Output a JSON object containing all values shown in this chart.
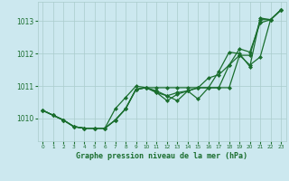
{
  "xlabel": "Graphe pression niveau de la mer (hPa)",
  "xlim": [
    -0.5,
    23.5
  ],
  "ylim": [
    1009.3,
    1013.6
  ],
  "yticks": [
    1010,
    1011,
    1012,
    1013
  ],
  "xticks": [
    0,
    1,
    2,
    3,
    4,
    5,
    6,
    7,
    8,
    9,
    10,
    11,
    12,
    13,
    14,
    15,
    16,
    17,
    18,
    19,
    20,
    21,
    22,
    23
  ],
  "background_color": "#cce8ef",
  "grid_color": "#aacccc",
  "line_color": "#1a6e2e",
  "marker": "D",
  "markersize": 2.0,
  "linewidth": 0.9,
  "series": [
    [
      1010.25,
      1010.1,
      1009.95,
      1009.75,
      1009.7,
      1009.7,
      1009.7,
      1009.95,
      1010.3,
      1010.9,
      1010.95,
      1010.85,
      1010.7,
      1010.8,
      1010.85,
      1010.95,
      1011.25,
      1011.35,
      1011.65,
      1011.95,
      1011.65,
      1011.9,
      1013.05,
      1013.35
    ],
    [
      1010.25,
      1010.1,
      1009.95,
      1009.75,
      1009.7,
      1009.7,
      1009.7,
      1010.3,
      1010.65,
      1011.0,
      1010.95,
      1010.8,
      1010.55,
      1010.75,
      1010.85,
      1010.6,
      1010.95,
      1011.45,
      1012.05,
      1012.0,
      1011.6,
      1013.1,
      1013.05,
      1013.35
    ],
    [
      1010.25,
      1010.1,
      1009.95,
      1009.75,
      1009.7,
      1009.7,
      1009.7,
      1009.95,
      1010.3,
      1010.9,
      1010.95,
      1010.95,
      1010.95,
      1010.95,
      1010.95,
      1010.95,
      1010.95,
      1010.95,
      1010.95,
      1011.95,
      1011.95,
      1013.05,
      1013.05,
      1013.35
    ],
    [
      1010.25,
      1010.1,
      1009.95,
      1009.75,
      1009.7,
      1009.7,
      1009.7,
      1009.95,
      1010.3,
      1010.9,
      1010.95,
      1010.8,
      1010.7,
      1010.55,
      1010.85,
      1010.95,
      1010.95,
      1010.95,
      1011.65,
      1012.15,
      1012.05,
      1012.95,
      1013.05,
      1013.35
    ]
  ]
}
